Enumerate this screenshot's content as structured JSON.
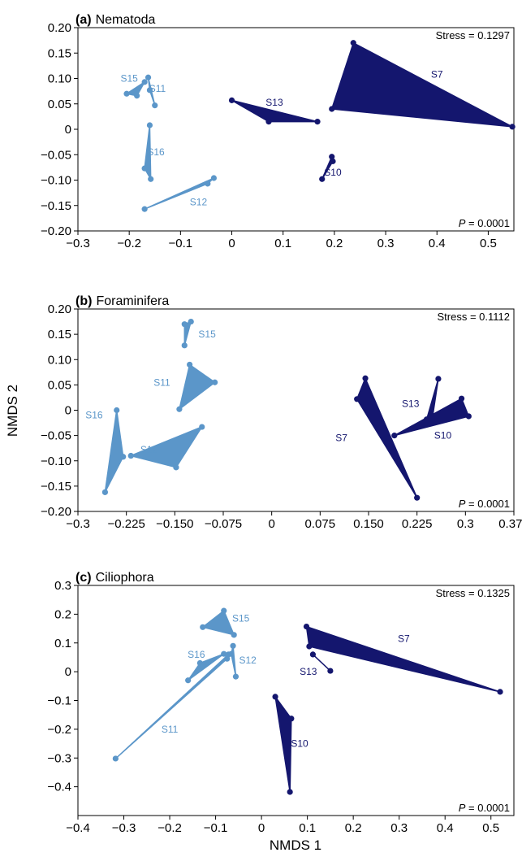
{
  "colors": {
    "light": "#5b96c9",
    "dark": "#14166e"
  },
  "chart_data": [
    {
      "type": "scatter",
      "letter": "(a)",
      "title": "Nematoda",
      "stress": "Stress = 0.1297",
      "p_prefix": "P",
      "p_value": " = 0.0001",
      "xlim": [
        -0.3,
        0.55
      ],
      "ylim": [
        -0.2,
        0.2
      ],
      "xticks": [
        "-0.3",
        "-0.2",
        "-0.1",
        "0",
        "0.1",
        "0.2",
        "0.3",
        "0.4",
        "0.5"
      ],
      "yticks": [
        "0.20",
        "0.15",
        "0.10",
        "0.05",
        "0",
        "-0.05",
        "-0.10",
        "-0.15",
        "-0.20"
      ],
      "series": [
        {
          "name": "S15",
          "color": "light",
          "label": [
            -0.2,
            0.1
          ],
          "points": [
            [
              -0.205,
              0.07
            ],
            [
              -0.17,
              0.093
            ],
            [
              -0.185,
              0.066
            ]
          ]
        },
        {
          "name": "S11",
          "color": "light",
          "label": [
            -0.145,
            0.08
          ],
          "points": [
            [
              -0.163,
              0.102
            ],
            [
              -0.16,
              0.077
            ],
            [
              -0.15,
              0.047
            ]
          ]
        },
        {
          "name": "S16",
          "color": "light",
          "label": [
            -0.148,
            -0.045
          ],
          "points": [
            [
              -0.16,
              0.008
            ],
            [
              -0.17,
              -0.077
            ],
            [
              -0.158,
              -0.098
            ]
          ]
        },
        {
          "name": "S12",
          "color": "light",
          "label": [
            -0.065,
            -0.143
          ],
          "points": [
            [
              -0.17,
              -0.157
            ],
            [
              -0.047,
              -0.107
            ],
            [
              -0.035,
              -0.096
            ]
          ]
        },
        {
          "name": "S13",
          "color": "dark",
          "label": [
            0.083,
            0.053
          ],
          "points": [
            [
              0.0,
              0.057
            ],
            [
              0.072,
              0.015
            ],
            [
              0.167,
              0.015
            ]
          ]
        },
        {
          "name": "S7",
          "color": "dark",
          "label": [
            0.4,
            0.108
          ],
          "points": [
            [
              0.237,
              0.17
            ],
            [
              0.195,
              0.04
            ],
            [
              0.547,
              0.005
            ]
          ]
        },
        {
          "name": "S10",
          "color": "dark",
          "label": [
            0.197,
            -0.085
          ],
          "points": [
            [
              0.195,
              -0.054
            ],
            [
              0.197,
              -0.063
            ],
            [
              0.176,
              -0.098
            ]
          ]
        }
      ]
    },
    {
      "type": "scatter",
      "letter": "(b)",
      "title": "Foraminifera",
      "stress": "Stress = 0.1112",
      "p_prefix": "P",
      "p_value": " = 0.0001",
      "xlim": [
        -0.3,
        0.375
      ],
      "ylim": [
        -0.2,
        0.2
      ],
      "xticks": [
        "-0.3",
        "-0.225",
        "-0.150",
        "-0.075",
        "0",
        "0.075",
        "0.150",
        "0.225",
        "0.3",
        "0.375"
      ],
      "yticks": [
        "0.20",
        "0.15",
        "0.10",
        "0.05",
        "0",
        "-0.05",
        "-0.10",
        "-0.15",
        "-0.20"
      ],
      "series": [
        {
          "name": "S15",
          "color": "light",
          "label": [
            -0.1,
            0.15
          ],
          "points": [
            [
              -0.135,
              0.17
            ],
            [
              -0.125,
              0.175
            ],
            [
              -0.135,
              0.128
            ]
          ]
        },
        {
          "name": "S11",
          "color": "light",
          "label": [
            -0.17,
            0.055
          ],
          "points": [
            [
              -0.127,
              0.09
            ],
            [
              -0.143,
              0.002
            ],
            [
              -0.088,
              0.055
            ]
          ]
        },
        {
          "name": "S16",
          "color": "light",
          "label": [
            -0.275,
            -0.01
          ],
          "points": [
            [
              -0.24,
              0.0
            ],
            [
              -0.258,
              -0.162
            ],
            [
              -0.23,
              -0.092
            ]
          ]
        },
        {
          "name": "S12",
          "color": "light",
          "label": [
            -0.19,
            -0.078
          ],
          "points": [
            [
              -0.218,
              -0.09
            ],
            [
              -0.148,
              -0.113
            ],
            [
              -0.108,
              -0.033
            ]
          ]
        },
        {
          "name": "S7",
          "color": "dark",
          "label": [
            0.108,
            -0.055
          ],
          "points": [
            [
              0.145,
              0.063
            ],
            [
              0.132,
              0.022
            ],
            [
              0.225,
              -0.173
            ]
          ]
        },
        {
          "name": "S13",
          "color": "dark",
          "label": [
            0.215,
            0.013
          ],
          "points": [
            [
              0.258,
              0.062
            ],
            [
              0.24,
              -0.018
            ],
            [
              0.248,
              -0.022
            ]
          ]
        },
        {
          "name": "S10",
          "color": "dark",
          "label": [
            0.265,
            -0.05
          ],
          "points": [
            [
              0.294,
              0.023
            ],
            [
              0.305,
              -0.012
            ],
            [
              0.19,
              -0.05
            ]
          ]
        }
      ]
    },
    {
      "type": "scatter",
      "letter": "(c)",
      "title": "Ciliophora",
      "stress": "Stress = 0.1325",
      "p_prefix": "P",
      "p_value": " = 0.0001",
      "xlim": [
        -0.4,
        0.55
      ],
      "ylim": [
        -0.5,
        0.3
      ],
      "xticks": [
        "-0.4",
        "-0.3",
        "-0.2",
        "-0.1",
        "0",
        "0.1",
        "0.2",
        "0.3",
        "0.4",
        "0.5"
      ],
      "yticks": [
        "0.3",
        "0.2",
        "0.1",
        "0",
        "-0.1",
        "-0.2",
        "-0.3",
        "-0.4"
      ],
      "series": [
        {
          "name": "S15",
          "color": "light",
          "label": [
            -0.045,
            0.185
          ],
          "points": [
            [
              -0.082,
              0.212
            ],
            [
              -0.128,
              0.155
            ],
            [
              -0.06,
              0.128
            ]
          ]
        },
        {
          "name": "S16",
          "color": "light",
          "label": [
            -0.142,
            0.06
          ],
          "points": [
            [
              -0.134,
              0.03
            ],
            [
              -0.082,
              0.062
            ],
            [
              -0.16,
              -0.03
            ]
          ]
        },
        {
          "name": "S12",
          "color": "light",
          "label": [
            -0.03,
            0.04
          ],
          "points": [
            [
              -0.062,
              0.09
            ],
            [
              -0.066,
              0.062
            ],
            [
              -0.056,
              -0.017
            ]
          ]
        },
        {
          "name": "S11",
          "color": "light",
          "label": [
            -0.2,
            -0.2
          ],
          "points": [
            [
              -0.318,
              -0.302
            ],
            [
              -0.075,
              0.045
            ],
            [
              -0.072,
              0.06
            ]
          ]
        },
        {
          "name": "S7",
          "color": "dark",
          "label": [
            0.31,
            0.115
          ],
          "points": [
            [
              0.098,
              0.157
            ],
            [
              0.104,
              0.088
            ],
            [
              0.52,
              -0.07
            ]
          ]
        },
        {
          "name": "S13",
          "color": "dark",
          "label": [
            0.102,
            0.0
          ],
          "points": [
            [
              0.112,
              0.06
            ],
            [
              0.15,
              0.003
            ]
          ]
        },
        {
          "name": "S10",
          "color": "dark",
          "label": [
            0.083,
            -0.25
          ],
          "points": [
            [
              0.03,
              -0.087
            ],
            [
              0.065,
              -0.163
            ],
            [
              0.062,
              -0.418
            ]
          ]
        }
      ]
    }
  ],
  "ylabel": "NMDS 2",
  "xlabel": "NMDS 1"
}
